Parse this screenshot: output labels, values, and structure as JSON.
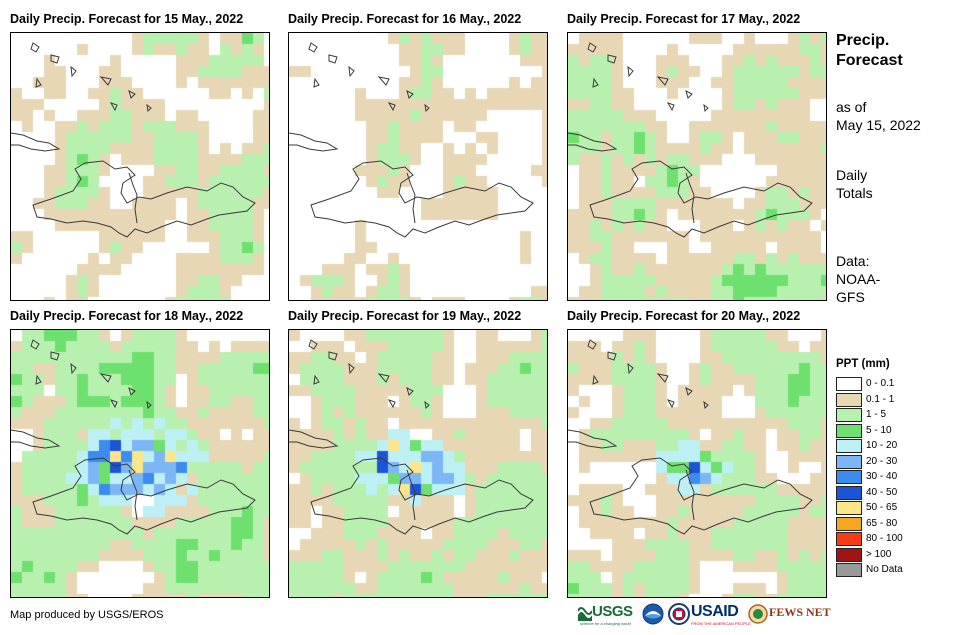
{
  "panels": [
    {
      "title": "Daily Precip. Forecast for 15 May., 2022",
      "day": "15 May"
    },
    {
      "title": "Daily Precip. Forecast for 16 May., 2022",
      "day": "16 May"
    },
    {
      "title": "Daily Precip. Forecast for 17 May., 2022",
      "day": "17 May"
    },
    {
      "title": "Daily Precip. Forecast for 18 May., 2022",
      "day": "18 May"
    },
    {
      "title": "Daily Precip. Forecast for 19 May., 2022",
      "day": "19 May"
    },
    {
      "title": "Daily Precip. Forecast for 20 May., 2022",
      "day": "20 May"
    }
  ],
  "sidebar": {
    "title_line1": "Precip.",
    "title_line2": "Forecast",
    "asof_line1": "as of",
    "asof_line2": "May 15, 2022",
    "totals_line1": "Daily",
    "totals_line2": "Totals",
    "data_line1": "Data:",
    "data_line2": "NOAA-",
    "data_line3": "GFS"
  },
  "legend": {
    "title": "PPT (mm)",
    "items": [
      {
        "label": "0 - 0.1",
        "color": "#ffffff"
      },
      {
        "label": "0.1 - 1",
        "color": "#e8d7b5"
      },
      {
        "label": "1 - 5",
        "color": "#b8f0b0"
      },
      {
        "label": "5 - 10",
        "color": "#6ee06e"
      },
      {
        "label": "10 - 20",
        "color": "#bdf0f5"
      },
      {
        "label": "20 - 30",
        "color": "#7db6f5"
      },
      {
        "label": "30 - 40",
        "color": "#3c8cf0"
      },
      {
        "label": "40 - 50",
        "color": "#1c54d8"
      },
      {
        "label": "50 - 65",
        "color": "#fde68a"
      },
      {
        "label": "65 - 80",
        "color": "#f5a623"
      },
      {
        "label": "80 - 100",
        "color": "#f53c14"
      },
      {
        "label": "> 100",
        "color": "#a01414"
      },
      {
        "label": "No Data",
        "color": "#999999"
      }
    ]
  },
  "footer": {
    "credit": "Map produced by USGS/EROS",
    "logo_usgs": "USGS",
    "logo_usgs_tag": "science for a changing world",
    "logo_usaid": "USAID",
    "logo_usaid_tag": "FROM THE AMERICAN PEOPLE",
    "logo_fews": "FEWS NET"
  }
}
